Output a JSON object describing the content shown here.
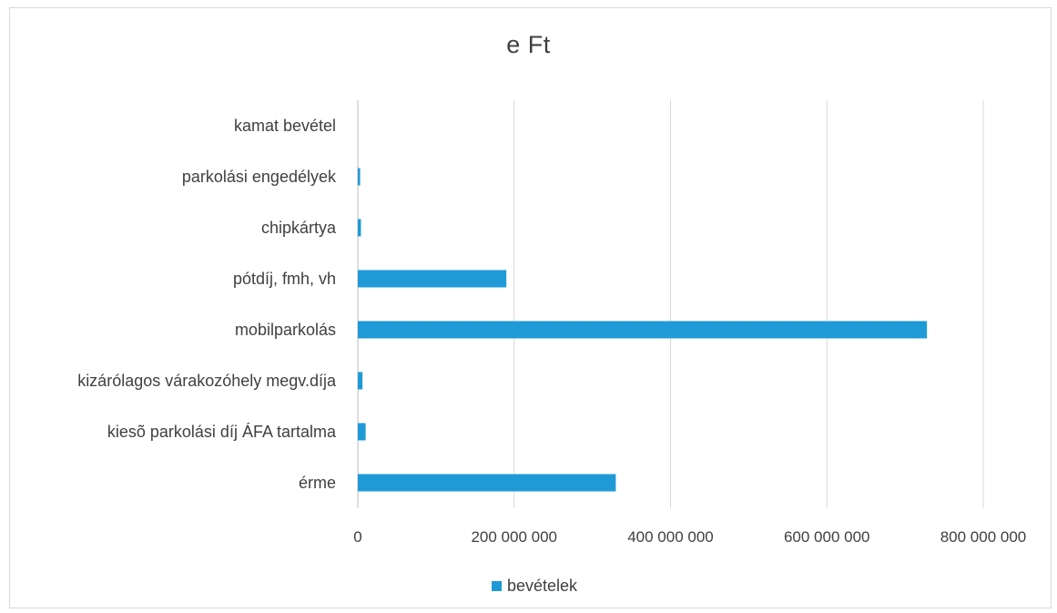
{
  "chart_data": {
    "type": "bar",
    "orientation": "horizontal",
    "title": "e Ft",
    "categories": [
      "kamat bevétel",
      "parkolási engedélyek",
      "chipkártya",
      "pótdíj, fmh, vh",
      "mobilparkolás",
      "kizárólagos várakozóhely megv.díja",
      "kiesõ parkolási díj ÁFA tartalma",
      "érme"
    ],
    "series": [
      {
        "name": "bevételek",
        "color": "#1f9ad6",
        "values": [
          0,
          3000000,
          4000000,
          190000000,
          728000000,
          6000000,
          10000000,
          330000000
        ]
      }
    ],
    "xlim": [
      0,
      800000000
    ],
    "xticks": [
      0,
      200000000,
      400000000,
      600000000,
      800000000
    ],
    "xtick_labels": [
      "0",
      "200 000 000",
      "400 000 000",
      "600 000 000",
      "800 000 000"
    ],
    "grid": "vertical",
    "legend_position": "bottom"
  }
}
